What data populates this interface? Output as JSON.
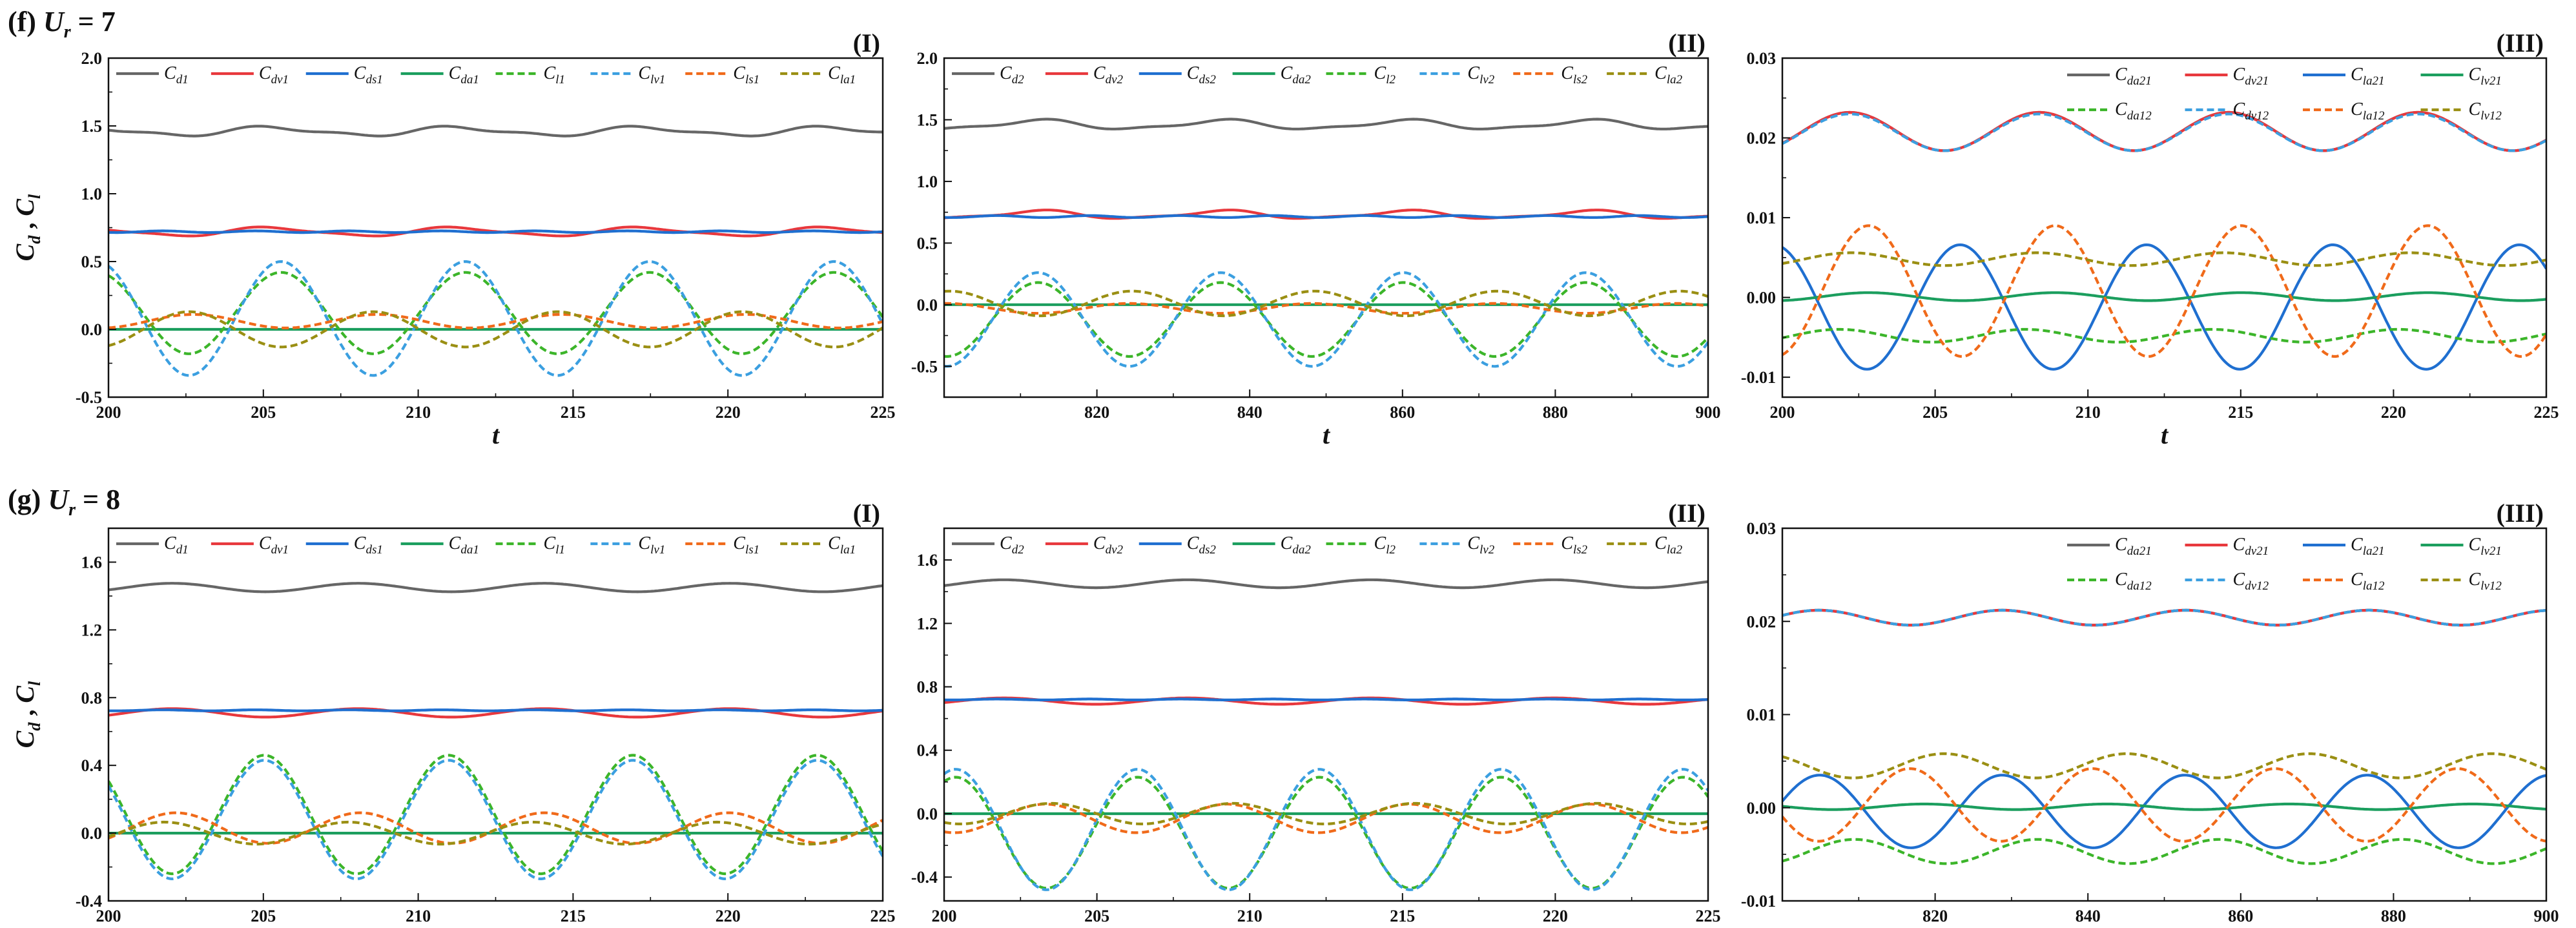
{
  "colors": {
    "grey": "#666666",
    "red": "#e8383d",
    "blue": "#1f6fd0",
    "teal": "#1b9e5e",
    "green": "#3cb52a",
    "lightblue": "#3b9fe0",
    "orange": "#f06a1a",
    "olive": "#9a8f13"
  },
  "rows": [
    {
      "heading_text": "(f) ",
      "heading_var": "U",
      "heading_sub": "r",
      "heading_val": " = 7"
    },
    {
      "heading_text": "(g) ",
      "heading_var": "U",
      "heading_sub": "r",
      "heading_val": " = 8"
    }
  ],
  "chart_data": [
    {
      "id": "f-I",
      "type": "line",
      "panel_label": "(I)",
      "xlabel": "t",
      "ylabel": "Cd, Cl",
      "ylabel_parts": [
        "C",
        "d",
        " , ",
        "C",
        "l"
      ],
      "xlim": [
        200,
        225
      ],
      "ylim": [
        -0.5,
        2.0
      ],
      "xticks": [
        "200",
        "205",
        "210",
        "215",
        "220",
        "225"
      ],
      "yticks": [
        "-0.5",
        "0.0",
        "0.5",
        "1.0",
        "1.5",
        "2.0"
      ],
      "legend_layout": "row",
      "series": [
        {
          "name": "Cd1",
          "base": "C",
          "sub": "d1",
          "color": "grey",
          "dash": false,
          "mean": 1.46,
          "amp": 0.03,
          "period": 6.0,
          "phase": 0.3,
          "amp2": 0.012,
          "period2": 3.0
        },
        {
          "name": "Cdv1",
          "base": "C",
          "sub": "dv1",
          "color": "red",
          "dash": false,
          "mean": 0.72,
          "amp": 0.03,
          "period": 6.0,
          "phase": 0.3,
          "amp2": 0.008,
          "period2": 3.0
        },
        {
          "name": "Cds1",
          "base": "C",
          "sub": "ds1",
          "color": "blue",
          "dash": false,
          "mean": 0.72,
          "amp": 0.006,
          "period": 3.0,
          "phase": 0.0
        },
        {
          "name": "Cda1",
          "base": "C",
          "sub": "da1",
          "color": "teal",
          "dash": false,
          "mean": 0.0,
          "amp": 0.0,
          "period": 6.0,
          "phase": 0.0
        },
        {
          "name": "Cl1",
          "base": "C",
          "sub": "l1",
          "color": "green",
          "dash": true,
          "mean": 0.12,
          "amp": 0.3,
          "period": 5.95,
          "phase": 4.4
        },
        {
          "name": "Clv1",
          "base": "C",
          "sub": "lv1",
          "color": "lightblue",
          "dash": true,
          "mean": 0.08,
          "amp": 0.42,
          "period": 5.95,
          "phase": 4.4
        },
        {
          "name": "Cls1",
          "base": "C",
          "sub": "ls1",
          "color": "orange",
          "dash": true,
          "mean": 0.06,
          "amp": 0.05,
          "period": 5.95,
          "phase": 1.1
        },
        {
          "name": "Cla1",
          "base": "C",
          "sub": "la1",
          "color": "olive",
          "dash": true,
          "mean": 0.0,
          "amp": 0.13,
          "period": 5.95,
          "phase": 1.25
        }
      ]
    },
    {
      "id": "f-II",
      "type": "line",
      "panel_label": "(II)",
      "xlabel": "t",
      "ylabel": "",
      "xlim": [
        800,
        900
      ],
      "ylim": [
        -0.75,
        2.0
      ],
      "xticks": [
        "820",
        "840",
        "860",
        "880",
        "900"
      ],
      "yticks": [
        "-0.5",
        "0.0",
        "0.5",
        "1.0",
        "1.5",
        "2.0"
      ],
      "legend_layout": "row",
      "series": [
        {
          "name": "Cd2",
          "base": "C",
          "sub": "d2",
          "color": "grey",
          "dash": false,
          "mean": 1.46,
          "amp": 0.035,
          "period": 24.0,
          "phase": 2.5,
          "amp2": 0.012,
          "period2": 12.0
        },
        {
          "name": "Cdv2",
          "base": "C",
          "sub": "dv2",
          "color": "red",
          "dash": false,
          "mean": 0.73,
          "amp": 0.03,
          "period": 24.0,
          "phase": 2.5,
          "amp2": 0.01,
          "period2": 12.0
        },
        {
          "name": "Cds2",
          "base": "C",
          "sub": "ds2",
          "color": "blue",
          "dash": false,
          "mean": 0.715,
          "amp": 0.008,
          "period": 12.0,
          "phase": 0.0
        },
        {
          "name": "Cda2",
          "base": "C",
          "sub": "da2",
          "color": "teal",
          "dash": false,
          "mean": 0.0,
          "amp": 0.0,
          "period": 24.0,
          "phase": 0.0
        },
        {
          "name": "Cl2",
          "base": "C",
          "sub": "l2",
          "color": "green",
          "dash": true,
          "mean": -0.12,
          "amp": 0.3,
          "period": 23.9,
          "phase": 1.65
        },
        {
          "name": "Clv2",
          "base": "C",
          "sub": "lv2",
          "color": "lightblue",
          "dash": true,
          "mean": -0.12,
          "amp": 0.38,
          "period": 23.9,
          "phase": 1.65
        },
        {
          "name": "Cls2",
          "base": "C",
          "sub": "ls2",
          "color": "orange",
          "dash": true,
          "mean": -0.03,
          "amp": 0.04,
          "period": 23.9,
          "phase": 4.8
        },
        {
          "name": "Cla2",
          "base": "C",
          "sub": "la2",
          "color": "olive",
          "dash": true,
          "mean": 0.01,
          "amp": 0.1,
          "period": 23.9,
          "phase": 4.7
        }
      ]
    },
    {
      "id": "f-III",
      "type": "line",
      "panel_label": "(III)",
      "xlabel": "t",
      "ylabel": "",
      "xlim": [
        200,
        225
      ],
      "ylim": [
        -0.0125,
        0.03
      ],
      "xticks": [
        "200",
        "205",
        "210",
        "215",
        "220",
        "225"
      ],
      "yticks": [
        "-0.01",
        "0.00",
        "0.01",
        "0.02",
        "0.03"
      ],
      "legend_layout": "grid",
      "series": [
        {
          "name": "Cda21",
          "base": "C",
          "sub": "da21",
          "color": "grey",
          "dash": false,
          "mean": 0.0208,
          "amp": 0.0024,
          "period": 6.2,
          "phase": 4.0
        },
        {
          "name": "Cdv21",
          "base": "C",
          "sub": "dv21",
          "color": "red",
          "dash": false,
          "mean": 0.0208,
          "amp": 0.0024,
          "period": 6.2,
          "phase": 4.0
        },
        {
          "name": "Cla21",
          "base": "C",
          "sub": "la21",
          "color": "blue",
          "dash": false,
          "mean": -0.0012,
          "amp": 0.0078,
          "period": 6.1,
          "phase": 3.2
        },
        {
          "name": "Clv21",
          "base": "C",
          "sub": "lv21",
          "color": "teal",
          "dash": false,
          "mean": 0.0001,
          "amp": 0.0005,
          "period": 6.1,
          "phase": 0.0
        },
        {
          "name": "Cda12",
          "base": "C",
          "sub": "da12",
          "color": "green",
          "dash": true,
          "mean": -0.0048,
          "amp": 0.0008,
          "period": 6.1,
          "phase": 1.0
        },
        {
          "name": "Cdv12",
          "base": "C",
          "sub": "dv12",
          "color": "lightblue",
          "dash": true,
          "mean": 0.0207,
          "amp": 0.0023,
          "period": 6.2,
          "phase": 4.0
        },
        {
          "name": "Cla12",
          "base": "C",
          "sub": "la12",
          "color": "orange",
          "dash": true,
          "mean": 0.0008,
          "amp": 0.0082,
          "period": 6.1,
          "phase": 0.0
        },
        {
          "name": "Clv12",
          "base": "C",
          "sub": "lv12",
          "color": "olive",
          "dash": true,
          "mean": 0.0048,
          "amp": 0.0008,
          "period": 6.1,
          "phase": 0.6
        }
      ]
    },
    {
      "id": "g-I",
      "type": "line",
      "panel_label": "(I)",
      "xlabel": "t",
      "ylabel": "Cd, Cl",
      "ylabel_parts": [
        "C",
        "d",
        " , ",
        "C",
        "l"
      ],
      "xlim": [
        200,
        225
      ],
      "ylim": [
        -0.4,
        1.8
      ],
      "xticks": [
        "200",
        "205",
        "210",
        "215",
        "220",
        "225"
      ],
      "yticks": [
        "-0.4",
        "0.0",
        "0.4",
        "0.8",
        "1.2",
        "1.6"
      ],
      "legend_layout": "row",
      "series": [
        {
          "name": "Cd1",
          "base": "C",
          "sub": "d1",
          "color": "grey",
          "dash": false,
          "mean": 1.45,
          "amp": 0.025,
          "period": 6.0,
          "phase": 3.6
        },
        {
          "name": "Cdv1",
          "base": "C",
          "sub": "dv1",
          "color": "red",
          "dash": false,
          "mean": 0.71,
          "amp": 0.025,
          "period": 6.0,
          "phase": 3.6
        },
        {
          "name": "Cds1",
          "base": "C",
          "sub": "ds1",
          "color": "blue",
          "dash": false,
          "mean": 0.725,
          "amp": 0.003,
          "period": 3.0,
          "phase": 0.0
        },
        {
          "name": "Cda1",
          "base": "C",
          "sub": "da1",
          "color": "teal",
          "dash": false,
          "mean": 0.0,
          "amp": 0.0,
          "period": 6.0,
          "phase": 0.0
        },
        {
          "name": "Cl1",
          "base": "C",
          "sub": "l1",
          "color": "green",
          "dash": true,
          "mean": 0.11,
          "amp": 0.35,
          "period": 5.95,
          "phase": 4.97
        },
        {
          "name": "Clv1",
          "base": "C",
          "sub": "lv1",
          "color": "lightblue",
          "dash": true,
          "mean": 0.08,
          "amp": 0.35,
          "period": 5.95,
          "phase": 4.97
        },
        {
          "name": "Cls1",
          "base": "C",
          "sub": "ls1",
          "color": "orange",
          "dash": true,
          "mean": 0.03,
          "amp": 0.09,
          "period": 5.95,
          "phase": 1.7
        },
        {
          "name": "Cla1",
          "base": "C",
          "sub": "la1",
          "color": "olive",
          "dash": true,
          "mean": 0.0,
          "amp": 0.065,
          "period": 5.95,
          "phase": 2.1
        }
      ]
    },
    {
      "id": "g-II",
      "type": "line",
      "panel_label": "(II)",
      "xlabel": "t",
      "ylabel": "",
      "xlim": [
        200,
        225
      ],
      "ylim": [
        -0.55,
        1.8
      ],
      "xticks": [
        "200",
        "205",
        "210",
        "215",
        "220",
        "225"
      ],
      "yticks": [
        "-0.4",
        "0.0",
        "0.4",
        "0.8",
        "1.2",
        "1.6"
      ],
      "legend_layout": "row",
      "series": [
        {
          "name": "Cd2",
          "base": "C",
          "sub": "d2",
          "color": "grey",
          "dash": false,
          "mean": 1.45,
          "amp": 0.025,
          "period": 6.0,
          "phase": 3.7
        },
        {
          "name": "Cdv2",
          "base": "C",
          "sub": "dv2",
          "color": "red",
          "dash": false,
          "mean": 0.71,
          "amp": 0.02,
          "period": 6.0,
          "phase": 3.7
        },
        {
          "name": "Cds2",
          "base": "C",
          "sub": "ds2",
          "color": "blue",
          "dash": false,
          "mean": 0.72,
          "amp": 0.003,
          "period": 3.0,
          "phase": 0.0
        },
        {
          "name": "Cda2",
          "base": "C",
          "sub": "da2",
          "color": "teal",
          "dash": false,
          "mean": 0.0,
          "amp": 0.0,
          "period": 6.0,
          "phase": 0.0
        },
        {
          "name": "Cl2",
          "base": "C",
          "sub": "l2",
          "color": "green",
          "dash": true,
          "mean": -0.12,
          "amp": 0.35,
          "period": 5.95,
          "phase": 3.6
        },
        {
          "name": "Clv2",
          "base": "C",
          "sub": "lv2",
          "color": "lightblue",
          "dash": true,
          "mean": -0.1,
          "amp": 0.38,
          "period": 5.95,
          "phase": 3.6
        },
        {
          "name": "Cls2",
          "base": "C",
          "sub": "ls2",
          "color": "orange",
          "dash": true,
          "mean": -0.03,
          "amp": 0.09,
          "period": 5.95,
          "phase": 0.5
        },
        {
          "name": "Cla2",
          "base": "C",
          "sub": "la2",
          "color": "olive",
          "dash": true,
          "mean": 0.0,
          "amp": 0.065,
          "period": 5.95,
          "phase": 0.3
        }
      ]
    },
    {
      "id": "g-III",
      "type": "line",
      "panel_label": "(III)",
      "xlabel": "t",
      "ylabel": "",
      "xlim": [
        800,
        900
      ],
      "ylim": [
        -0.01,
        0.03
      ],
      "xticks": [
        "820",
        "840",
        "860",
        "880",
        "900"
      ],
      "yticks": [
        "-0.01",
        "0.00",
        "0.01",
        "0.02",
        "0.03"
      ],
      "legend_layout": "grid",
      "series": [
        {
          "name": "Cda21",
          "base": "C",
          "sub": "da21",
          "color": "grey",
          "dash": false,
          "mean": 0.0204,
          "amp": 0.0008,
          "period": 24.0,
          "phase": 4.5
        },
        {
          "name": "Cdv21",
          "base": "C",
          "sub": "dv21",
          "color": "red",
          "dash": false,
          "mean": 0.0204,
          "amp": 0.0008,
          "period": 24.0,
          "phase": 4.5
        },
        {
          "name": "Cla21",
          "base": "C",
          "sub": "la21",
          "color": "blue",
          "dash": false,
          "mean": -0.0004,
          "amp": 0.0039,
          "period": 23.9,
          "phase": 3.6
        },
        {
          "name": "Clv21",
          "base": "C",
          "sub": "lv21",
          "color": "teal",
          "dash": false,
          "mean": 0.0001,
          "amp": 0.0003,
          "period": 23.9,
          "phase": 0.0
        },
        {
          "name": "Cda12",
          "base": "C",
          "sub": "da12",
          "color": "green",
          "dash": true,
          "mean": -0.0047,
          "amp": 0.0013,
          "period": 23.9,
          "phase": 2.4
        },
        {
          "name": "Cdv12",
          "base": "C",
          "sub": "dv12",
          "color": "lightblue",
          "dash": true,
          "mean": 0.0204,
          "amp": 0.0008,
          "period": 24.0,
          "phase": 4.5
        },
        {
          "name": "Cla12",
          "base": "C",
          "sub": "la12",
          "color": "orange",
          "dash": true,
          "mean": 0.0003,
          "amp": 0.0039,
          "period": 23.9,
          "phase": 0.5
        },
        {
          "name": "Clv12",
          "base": "C",
          "sub": "lv12",
          "color": "olive",
          "dash": true,
          "mean": 0.0045,
          "amp": 0.0013,
          "period": 23.9,
          "phase": 5.6
        }
      ]
    }
  ]
}
